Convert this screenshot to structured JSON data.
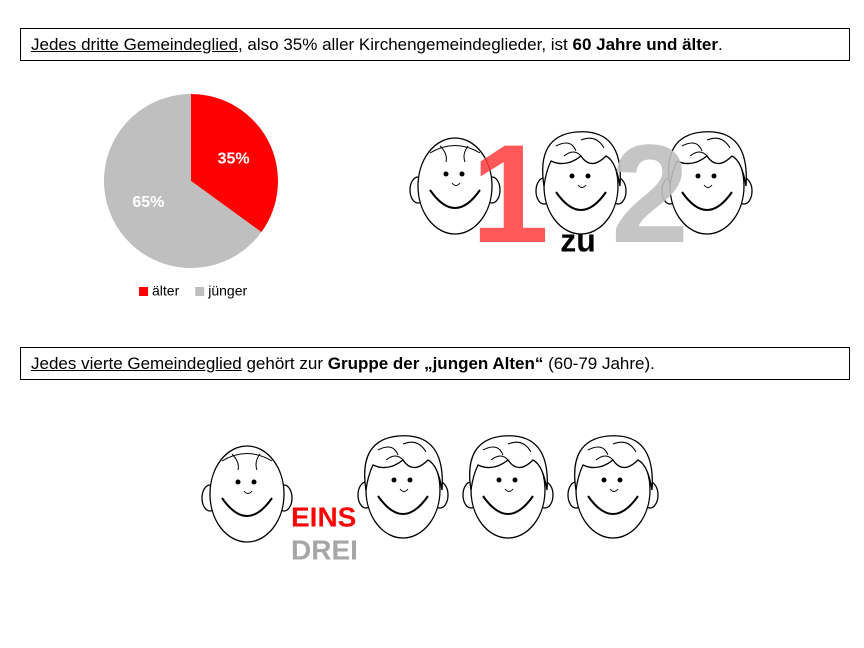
{
  "box1": {
    "parts": [
      "Jedes dritte Gemeindeglied,",
      " also 35% aller Kirchengemeindeglieder, ist ",
      "60 Jahre und älter",
      "."
    ]
  },
  "chart_data": {
    "type": "pie",
    "categories": [
      "älter",
      "jünger"
    ],
    "values": [
      35,
      65
    ],
    "value_labels": [
      "35%",
      "65%"
    ],
    "colors": [
      "#ff0000",
      "#bfbfbf"
    ]
  },
  "ratio1": {
    "left": "1",
    "middle": "zu",
    "right": "2"
  },
  "box2": {
    "parts": [
      "Jedes vierte Gemeindeglied",
      " gehört zur ",
      "Gruppe der „jungen Alten“",
      " (60-79 Jahre)."
    ]
  },
  "ratio2": {
    "top": "EINS",
    "bottom": "DREI"
  }
}
